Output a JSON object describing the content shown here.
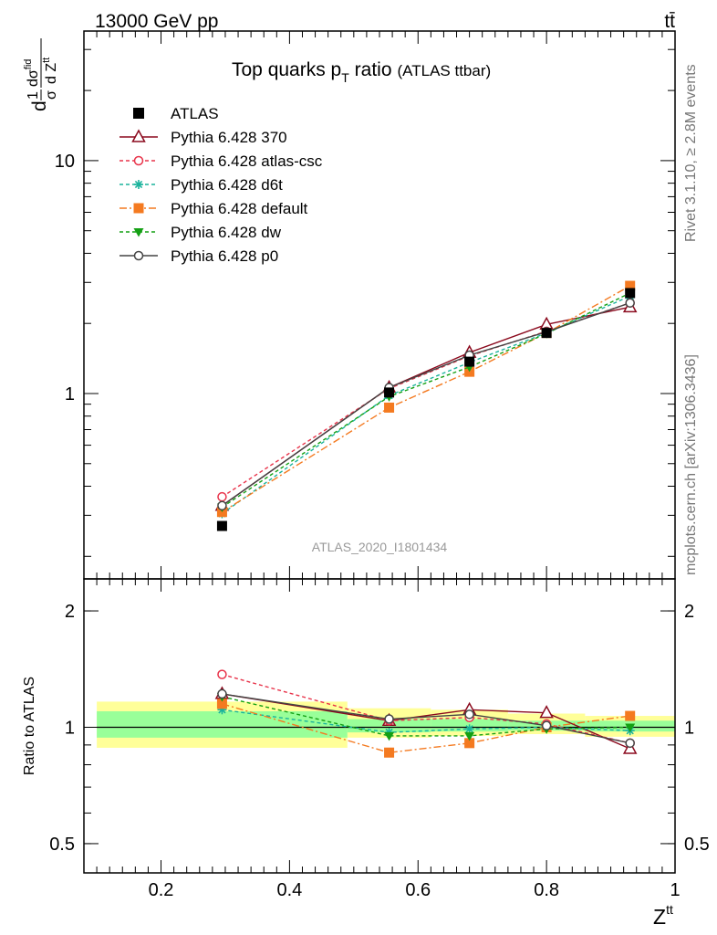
{
  "header": {
    "energy_label": "13000 GeV pp",
    "process_label": "tt̄"
  },
  "side_labels": {
    "rivet": "Rivet 3.1.10, ≥ 2.8M events",
    "mcplots": "mcplots.cern.ch [arXiv:1306.3436]"
  },
  "chart_data": [
    {
      "type": "line",
      "title_main": "Top quarks p",
      "title_sub": "T",
      "title_main2": " ratio",
      "title_note": "(ATLAS ttbar)",
      "ylabel_parts": {
        "d1": "d",
        "frac1_num": "1",
        "frac1_den": "σ",
        "frac2_num": "dσ",
        "frac2_sup": "fid",
        "frac2_den": "d Z",
        "frac2_den_sup": "tt"
      },
      "analysis_label": "ATLAS_2020_I1801434",
      "xlim": [
        0.08,
        1.0
      ],
      "ylim": [
        0.16,
        36
      ],
      "y_scale": "log",
      "y_tick_labels": [
        {
          "v": 1,
          "label": "1"
        },
        {
          "v": 10,
          "label": "10"
        }
      ],
      "x": [
        0.295,
        0.555,
        0.68,
        0.8,
        0.93
      ],
      "series": [
        {
          "name": "ATLAS",
          "color": "#000000",
          "marker": "square-filled",
          "dash": "",
          "values": [
            0.27,
            1.01,
            1.37,
            1.82,
            2.7
          ],
          "errors": [
            0.01,
            0.02,
            0.03,
            0.03,
            0.05
          ]
        },
        {
          "name": "Pythia 6.428 370",
          "color": "#8b0a1e",
          "marker": "triangle-open",
          "dash": "",
          "values": [
            0.33,
            1.06,
            1.5,
            1.98,
            2.35
          ]
        },
        {
          "name": "Pythia 6.428 atlas-csc",
          "color": "#e8334a",
          "marker": "circle-open",
          "dash": "4,3",
          "values": [
            0.36,
            1.05,
            1.45,
            1.85,
            2.45
          ]
        },
        {
          "name": "Pythia 6.428 d6t",
          "color": "#1ab39c",
          "marker": "star",
          "dash": "4,3",
          "values": [
            0.305,
            0.98,
            1.36,
            1.82,
            2.62
          ]
        },
        {
          "name": "Pythia 6.428 default",
          "color": "#f47a20",
          "marker": "square-filled",
          "dash": "8,3,2,3",
          "values": [
            0.31,
            0.87,
            1.24,
            1.82,
            2.9
          ]
        },
        {
          "name": "Pythia 6.428 dw",
          "color": "#14a014",
          "marker": "triangle-down-filled",
          "dash": "4,3",
          "values": [
            0.325,
            0.97,
            1.3,
            1.81,
            2.7
          ]
        },
        {
          "name": "Pythia 6.428 p0",
          "color": "#444444",
          "marker": "circle-open",
          "dash": "",
          "values": [
            0.33,
            1.06,
            1.46,
            1.84,
            2.45
          ]
        }
      ]
    },
    {
      "type": "line",
      "ylabel": "Ratio to ATLAS",
      "xlabel": "Z",
      "xlabel_sup": "tt",
      "xlim": [
        0.08,
        1.0
      ],
      "ylim": [
        0.42,
        2.42
      ],
      "y_scale": "log",
      "x_tick_labels": [
        "0.2",
        "0.4",
        "0.6",
        "0.8",
        "1"
      ],
      "y_tick_labels": [
        {
          "v": 0.5,
          "label": "0.5"
        },
        {
          "v": 1,
          "label": "1"
        },
        {
          "v": 2,
          "label": "2"
        }
      ],
      "x": [
        0.295,
        0.555,
        0.68,
        0.8,
        0.93
      ],
      "bands": [
        {
          "x0": 0.1,
          "x1": 0.49,
          "yellow": [
            0.885,
            1.165
          ],
          "green": [
            0.94,
            1.1
          ]
        },
        {
          "x0": 0.49,
          "x1": 0.62,
          "yellow": [
            0.94,
            1.12
          ],
          "green": [
            0.97,
            1.05
          ]
        },
        {
          "x0": 0.62,
          "x1": 0.74,
          "yellow": [
            0.95,
            1.11
          ],
          "green": [
            0.975,
            1.05
          ]
        },
        {
          "x0": 0.74,
          "x1": 0.86,
          "yellow": [
            0.96,
            1.085
          ],
          "green": [
            0.98,
            1.04
          ]
        },
        {
          "x0": 0.86,
          "x1": 1.0,
          "yellow": [
            0.945,
            1.07
          ],
          "green": [
            0.975,
            1.04
          ]
        }
      ],
      "series": [
        {
          "name": "Pythia 6.428 370",
          "values": [
            1.22,
            1.04,
            1.11,
            1.09,
            0.88
          ]
        },
        {
          "name": "Pythia 6.428 atlas-csc",
          "values": [
            1.37,
            1.04,
            1.06,
            1.02,
            0.91
          ]
        },
        {
          "name": "Pythia 6.428 d6t",
          "values": [
            1.11,
            0.97,
            0.99,
            1.0,
            0.98
          ]
        },
        {
          "name": "Pythia 6.428 default",
          "values": [
            1.15,
            0.86,
            0.91,
            1.0,
            1.07
          ]
        },
        {
          "name": "Pythia 6.428 dw",
          "values": [
            1.2,
            0.95,
            0.95,
            0.99,
            1.0
          ]
        },
        {
          "name": "Pythia 6.428 p0",
          "values": [
            1.22,
            1.05,
            1.08,
            1.01,
            0.91
          ]
        }
      ]
    }
  ]
}
